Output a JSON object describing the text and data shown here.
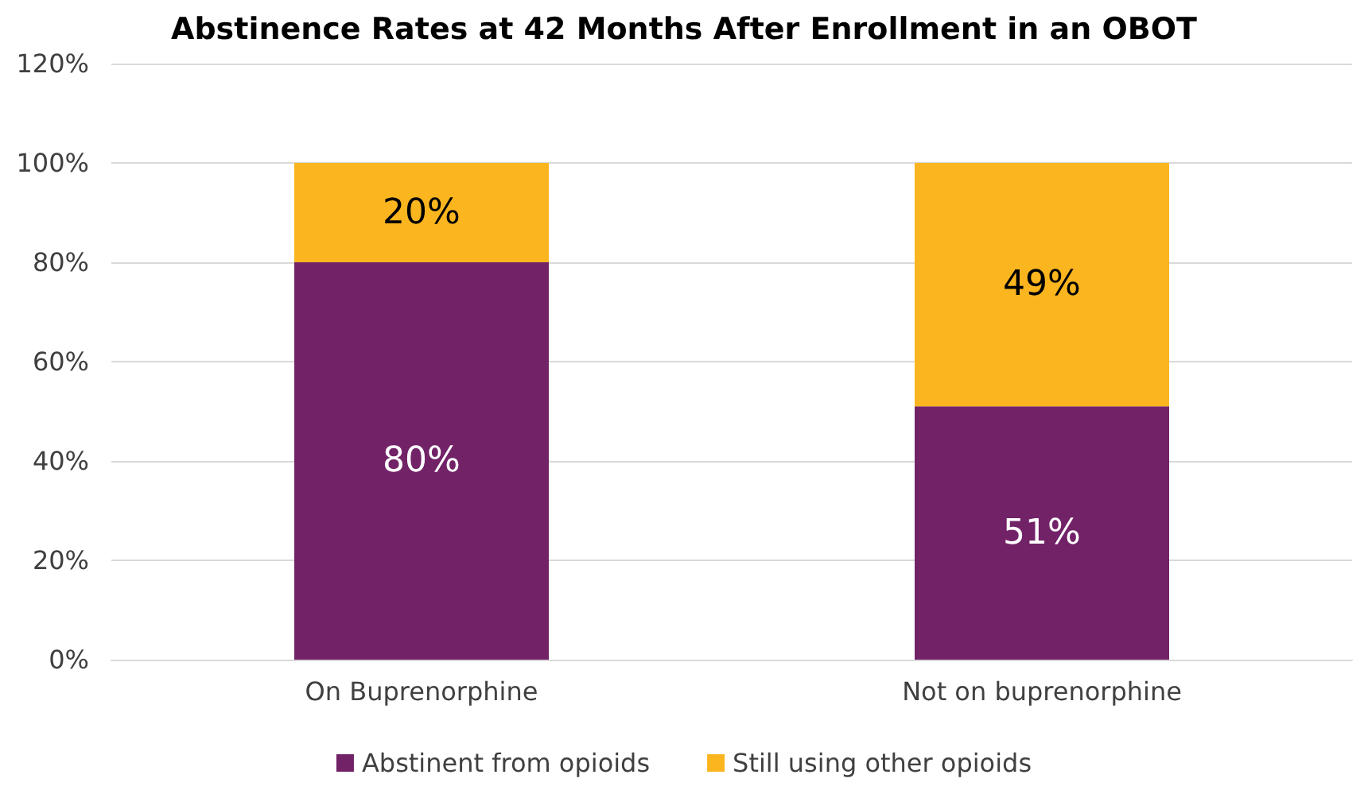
{
  "chart_data": {
    "type": "bar",
    "title": "Abstinence Rates at 42 Months After Enrollment in an OBOT",
    "categories": [
      "On Buprenorphine",
      "Not on buprenorphine"
    ],
    "stacked": true,
    "series": [
      {
        "name": "Abstinent from opioids",
        "color": "#722267",
        "values": [
          80,
          51
        ],
        "value_labels": [
          "80%",
          "51%"
        ]
      },
      {
        "name": "Still using other opioids",
        "color": "#fbb51f",
        "values": [
          20,
          49
        ],
        "value_labels": [
          "20%",
          "49%"
        ]
      }
    ],
    "ylim": [
      0,
      120
    ],
    "yticks": [
      {
        "value": 0,
        "label": "0%"
      },
      {
        "value": 20,
        "label": "20%"
      },
      {
        "value": 40,
        "label": "40%"
      },
      {
        "value": 60,
        "label": "60%"
      },
      {
        "value": 80,
        "label": "80%"
      },
      {
        "value": 100,
        "label": "100%"
      },
      {
        "value": 120,
        "label": "120%"
      }
    ],
    "grid": "y",
    "legend": "bottom"
  }
}
